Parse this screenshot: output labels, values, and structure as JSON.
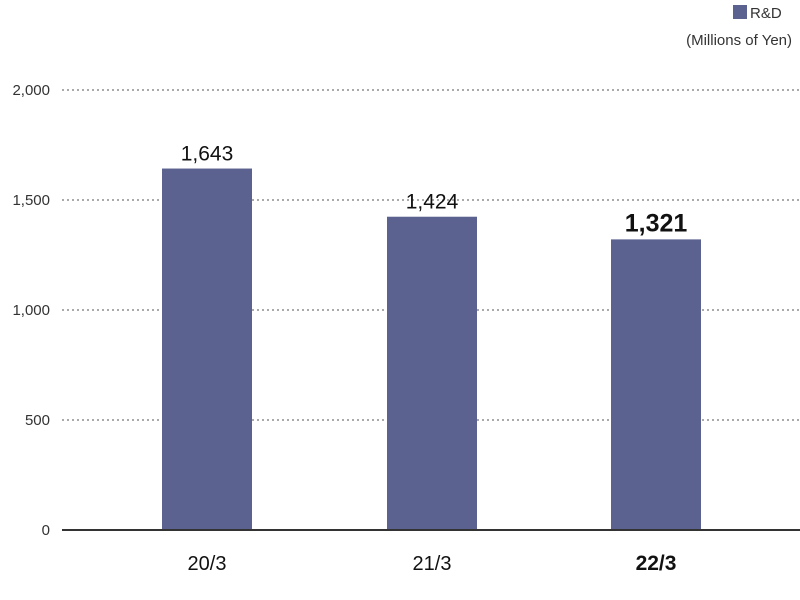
{
  "chart_data": {
    "type": "bar",
    "categories": [
      "20/3",
      "21/3",
      "22/3"
    ],
    "series": [
      {
        "name": "R&D",
        "values": [
          1643,
          1424,
          1321
        ]
      }
    ],
    "value_labels": [
      "1,643",
      "1,424",
      "1,321"
    ],
    "emphasized_index": 2,
    "unit": "(Millions of Yen)",
    "yticks": [
      0,
      500,
      1000,
      1500,
      2000
    ],
    "ytick_labels": [
      "0",
      "500",
      "1,000",
      "1,500",
      "2,000"
    ],
    "ylim": [
      0,
      2000
    ],
    "grid": true,
    "grid_style": "dotted",
    "legend_position": "top-right",
    "title": "",
    "xlabel": "",
    "ylabel": ""
  },
  "colors": {
    "bar": "#5b628f",
    "grid": "#555555",
    "axis": "#333333"
  }
}
